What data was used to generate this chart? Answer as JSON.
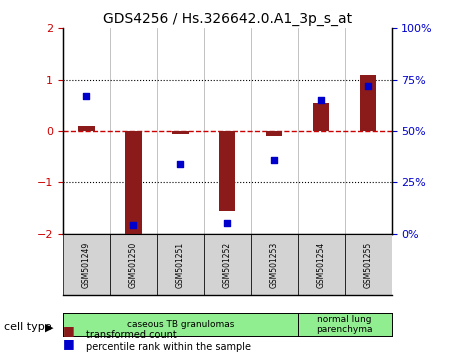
{
  "title": "GDS4256 / Hs.326642.0.A1_3p_s_at",
  "samples": [
    "GSM501249",
    "GSM501250",
    "GSM501251",
    "GSM501252",
    "GSM501253",
    "GSM501254",
    "GSM501255"
  ],
  "transformed_count": [
    0.1,
    -2.05,
    -0.05,
    -1.55,
    -0.1,
    0.55,
    1.1
  ],
  "percentile_rank": [
    0.7,
    -1.82,
    -0.55,
    -1.7,
    -0.45,
    0.62,
    0.9
  ],
  "percentile_rank_pct": [
    67,
    4,
    34,
    5,
    36,
    65,
    72
  ],
  "ylim_left": [
    -2,
    2
  ],
  "ylim_right": [
    0,
    100
  ],
  "yticks_left": [
    -2,
    -1,
    0,
    1,
    2
  ],
  "yticks_right": [
    0,
    25,
    50,
    75,
    100
  ],
  "ytick_labels_right": [
    "0%",
    "25%",
    "50%",
    "75%",
    "100%"
  ],
  "bar_color": "#8B1A1A",
  "dot_color": "#0000CC",
  "grid_color": "#000000",
  "hline_color": "#CC0000",
  "cell_types": [
    {
      "label": "caseous TB granulomas",
      "samples": [
        0,
        1,
        2,
        3,
        4
      ],
      "color": "#90EE90"
    },
    {
      "label": "normal lung\nparenchyma",
      "samples": [
        5,
        6
      ],
      "color": "#90EE90"
    }
  ],
  "legend_bar_label": "transformed count",
  "legend_dot_label": "percentile rank within the sample",
  "cell_type_label": "cell type",
  "background_color": "#FFFFFF",
  "plot_bg_color": "#FFFFFF",
  "tick_label_color_left": "#CC0000",
  "tick_label_color_right": "#0000CC"
}
